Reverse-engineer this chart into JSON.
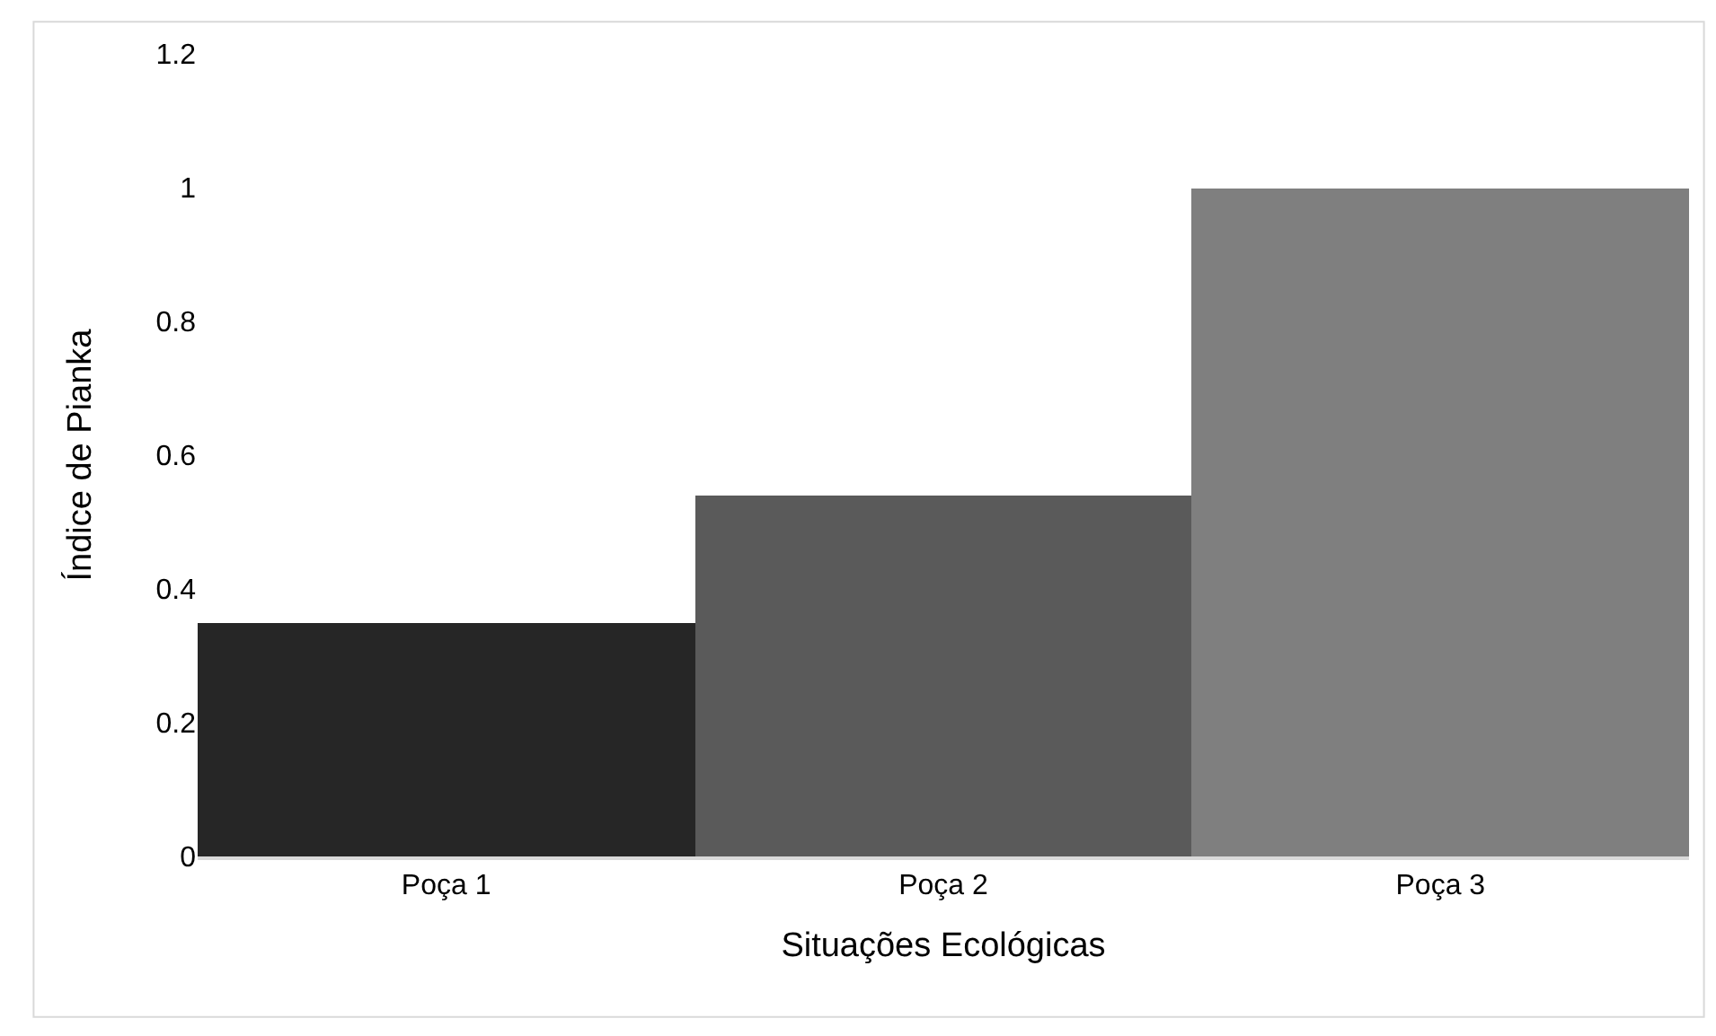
{
  "chart_data": {
    "type": "bar",
    "xlabel": "Situações Ecológicas",
    "ylabel": "Índice de Pianka",
    "categories": [
      "Poça 1",
      "Poça 2",
      "Poça 3"
    ],
    "values": [
      0.35,
      0.54,
      1.0
    ],
    "colors": [
      "#262626",
      "#5a5a5a",
      "#7f7f7f"
    ],
    "ylim": [
      0,
      1.2
    ],
    "yticks": [
      {
        "value": 0,
        "label": "0"
      },
      {
        "value": 0.2,
        "label": "0.2"
      },
      {
        "value": 0.4,
        "label": "0.4"
      },
      {
        "value": 0.6,
        "label": "0.6"
      },
      {
        "value": 0.8,
        "label": "0.8"
      },
      {
        "value": 1,
        "label": "1"
      },
      {
        "value": 1.2,
        "label": "1.2"
      }
    ]
  }
}
